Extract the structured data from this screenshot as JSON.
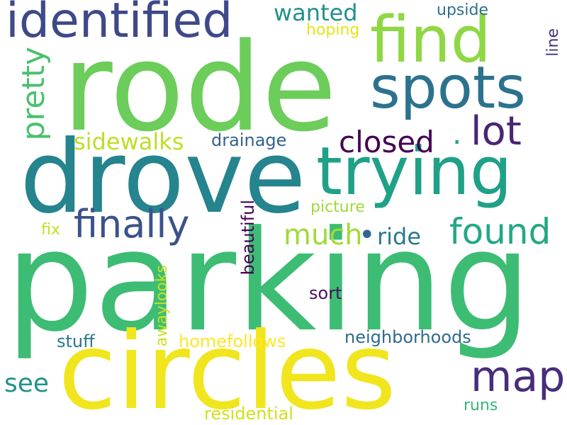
{
  "words": [
    {
      "id": "parking",
      "text": "parking",
      "color": "#3dbc74"
    },
    {
      "id": "rode",
      "text": "rode",
      "color": "#6ccd5a"
    },
    {
      "id": "drove",
      "text": "drove",
      "color": "#25848e"
    },
    {
      "id": "circles",
      "text": "circles",
      "color": "#f1e51d"
    },
    {
      "id": "trying",
      "text": "trying",
      "color": "#1fa187"
    },
    {
      "id": "identified",
      "text": "identified",
      "color": "#3e4989"
    },
    {
      "id": "find",
      "text": "find",
      "color": "#8fd744"
    },
    {
      "id": "spots",
      "text": "spots",
      "color": "#2c728e"
    },
    {
      "id": "lot",
      "text": "lot",
      "color": "#482576"
    },
    {
      "id": "closed",
      "text": "closed",
      "color": "#440154"
    },
    {
      "id": "dot1",
      "text": ".",
      "color": "#1fa187"
    },
    {
      "id": "finally",
      "text": "finally",
      "color": "#3b528b"
    },
    {
      "id": "found",
      "text": "found",
      "color": "#23a884"
    },
    {
      "id": "much",
      "text": "much",
      "color": "#a2da37"
    },
    {
      "id": "dot2",
      "text": "•",
      "color": "#31688e"
    },
    {
      "id": "ride",
      "text": "ride",
      "color": "#2a788e"
    },
    {
      "id": "map",
      "text": "map",
      "color": "#472d7b"
    },
    {
      "id": "see",
      "text": "see",
      "color": "#20928c"
    },
    {
      "id": "pretty",
      "text": "pretty",
      "color": "#4ac16d"
    },
    {
      "id": "sidewalks",
      "text": "sidewalks",
      "color": "#bddf26"
    },
    {
      "id": "drainage",
      "text": "drainage",
      "color": "#33638d"
    },
    {
      "id": "wanted",
      "text": "wanted",
      "color": "#21918c"
    },
    {
      "id": "hoping",
      "text": "hoping",
      "color": "#e5e419"
    },
    {
      "id": "upside",
      "text": "upside",
      "color": "#2d708e"
    },
    {
      "id": "line",
      "text": "line",
      "color": "#46327e"
    },
    {
      "id": "picture",
      "text": "picture",
      "color": "#a0da39"
    },
    {
      "id": "fix",
      "text": "fix",
      "color": "#c2df23"
    },
    {
      "id": "beautiful",
      "text": "beautiful",
      "color": "#440154"
    },
    {
      "id": "sort",
      "text": "sort",
      "color": "#471063"
    },
    {
      "id": "awaylooks",
      "text": "awaylooks",
      "color": "#c8e020"
    },
    {
      "id": "stuff",
      "text": "stuff",
      "color": "#2a788e"
    },
    {
      "id": "homefollows",
      "text": "homefollows",
      "color": "#fde725"
    },
    {
      "id": "neighborhoods",
      "text": "neighborhoods",
      "color": "#30698e"
    },
    {
      "id": "residential",
      "text": "residential",
      "color": "#d0e11c"
    },
    {
      "id": "runs",
      "text": "runs",
      "color": "#35b779"
    }
  ]
}
